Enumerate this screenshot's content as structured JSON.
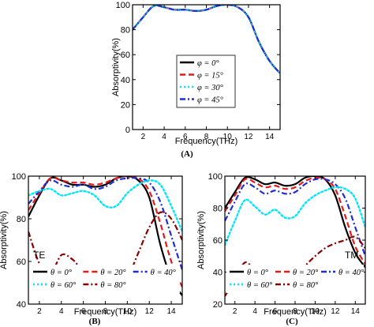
{
  "figure": {
    "panel_labels": [
      "(A)",
      "(B)",
      "(C)"
    ]
  },
  "chart_data": [
    {
      "type": "line",
      "panel": "(A)",
      "inset_label": "",
      "xlabel": "Frequency(THz)",
      "ylabel": "Absorptivity(%)",
      "xlim": [
        1,
        15
      ],
      "ylim": [
        0,
        100
      ],
      "xticks": [
        2,
        4,
        6,
        8,
        10,
        12,
        14
      ],
      "yticks": [
        0,
        20,
        40,
        60,
        80,
        100
      ],
      "legend_placement": "bottom-right",
      "legend_columns": 1,
      "series": [
        {
          "name": "φ = 0°",
          "color": "#000000",
          "dash": "solid",
          "x": [
            1,
            2,
            3,
            4,
            5,
            6,
            7,
            8,
            9,
            10,
            11,
            12,
            13,
            14,
            15
          ],
          "y": [
            80,
            90,
            99,
            98,
            96,
            96,
            95,
            96,
            99,
            100,
            98,
            90,
            70,
            55,
            45
          ]
        },
        {
          "name": "φ = 15°",
          "color": "#e41a1c",
          "dash": "dash",
          "x": [
            1,
            2,
            3,
            4,
            5,
            6,
            7,
            8,
            9,
            10,
            11,
            12,
            13,
            14,
            15
          ],
          "y": [
            80,
            90,
            99,
            98,
            96,
            96,
            95,
            96,
            99,
            100,
            98,
            90,
            70,
            55,
            45
          ]
        },
        {
          "name": "φ = 30°",
          "color": "#00e5ff",
          "dash": "dot",
          "x": [
            1,
            2,
            3,
            4,
            5,
            6,
            7,
            8,
            9,
            10,
            11,
            12,
            13,
            14,
            15
          ],
          "y": [
            80,
            90,
            99,
            98,
            96,
            96,
            95,
            96,
            99,
            100,
            98,
            90,
            70,
            55,
            45
          ]
        },
        {
          "name": "φ = 45°",
          "color": "#1f2fd6",
          "dash": "dashdot",
          "x": [
            1,
            2,
            3,
            4,
            5,
            6,
            7,
            8,
            9,
            10,
            11,
            12,
            13,
            14,
            15
          ],
          "y": [
            80,
            90,
            99,
            98,
            96,
            96,
            95,
            96,
            99,
            100,
            98,
            90,
            70,
            55,
            45
          ]
        }
      ]
    },
    {
      "type": "line",
      "panel": "(B)",
      "inset_label": "TE",
      "xlabel": "Frequency(THz)",
      "ylabel": "Absorptivity(%)",
      "xlim": [
        1,
        15
      ],
      "ylim": [
        40,
        100
      ],
      "xticks": [
        2,
        4,
        6,
        8,
        10,
        12,
        14
      ],
      "yticks": [
        40,
        60,
        80,
        100
      ],
      "legend_placement": "bottom",
      "legend_columns": 3,
      "series": [
        {
          "name": "θ = 0°",
          "color": "#000000",
          "dash": "solid",
          "x": [
            1,
            2,
            3,
            4,
            5,
            6,
            7,
            8,
            9,
            10,
            11,
            12,
            13,
            14,
            15
          ],
          "y": [
            81,
            91,
            99,
            98,
            96,
            96,
            95,
            96,
            99,
            100,
            98,
            90,
            68,
            52,
            44
          ]
        },
        {
          "name": "θ = 20°",
          "color": "#e41a1c",
          "dash": "dash",
          "x": [
            1,
            2,
            3,
            4,
            5,
            6,
            7,
            8,
            9,
            10,
            11,
            12,
            13,
            14,
            15
          ],
          "y": [
            84,
            92,
            99,
            98,
            97,
            97,
            96,
            97,
            99,
            100,
            99,
            93,
            78,
            60,
            48
          ]
        },
        {
          "name": "θ = 40°",
          "color": "#1f2fd6",
          "dash": "dashdot",
          "x": [
            1,
            2,
            3,
            4,
            5,
            6,
            7,
            8,
            9,
            10,
            11,
            12,
            13,
            14,
            15
          ],
          "y": [
            87,
            93,
            98,
            96,
            95,
            96,
            94,
            95,
            98,
            99,
            99,
            97,
            88,
            72,
            56
          ]
        },
        {
          "name": "θ = 60°",
          "color": "#00e5ff",
          "dash": "dot",
          "x": [
            1,
            2,
            3,
            4,
            5,
            6,
            7,
            8,
            9,
            10,
            11,
            12,
            13,
            14,
            15
          ],
          "y": [
            91,
            93,
            94,
            91,
            92,
            93,
            91,
            86,
            86,
            92,
            96,
            98,
            96,
            86,
            74
          ]
        },
        {
          "name": "θ = 80°",
          "color": "#8b0000",
          "dash": "dashdot",
          "x": [
            1,
            2,
            3,
            4,
            5,
            6,
            7,
            8,
            9,
            10,
            11,
            12,
            13,
            14,
            15
          ],
          "y": [
            74,
            59,
            54,
            63,
            61,
            56,
            58,
            50,
            46,
            52,
            64,
            76,
            83,
            80,
            70
          ]
        }
      ]
    },
    {
      "type": "line",
      "panel": "(C)",
      "inset_label": "TM",
      "xlabel": "Frequency(THz)",
      "ylabel": "Absorptivity(%)",
      "xlim": [
        1,
        15
      ],
      "ylim": [
        20,
        100
      ],
      "xticks": [
        2,
        4,
        6,
        8,
        10,
        12,
        14
      ],
      "yticks": [
        20,
        40,
        60,
        80,
        100
      ],
      "legend_placement": "bottom",
      "legend_columns": 3,
      "series": [
        {
          "name": "θ = 0°",
          "color": "#000000",
          "dash": "solid",
          "x": [
            1,
            2,
            3,
            4,
            5,
            6,
            7,
            8,
            9,
            10,
            11,
            12,
            13,
            14,
            15
          ],
          "y": [
            80,
            90,
            99,
            98,
            95,
            96,
            94,
            95,
            99,
            100,
            98,
            88,
            68,
            52,
            43
          ]
        },
        {
          "name": "θ = 20°",
          "color": "#e41a1c",
          "dash": "dash",
          "x": [
            1,
            2,
            3,
            4,
            5,
            6,
            7,
            8,
            9,
            10,
            11,
            12,
            13,
            14,
            15
          ],
          "y": [
            78,
            88,
            98,
            96,
            93,
            94,
            92,
            93,
            97,
            99,
            98,
            92,
            75,
            56,
            45
          ]
        },
        {
          "name": "θ = 40°",
          "color": "#1f2fd6",
          "dash": "dashdot",
          "x": [
            1,
            2,
            3,
            4,
            5,
            6,
            7,
            8,
            9,
            10,
            11,
            12,
            13,
            14,
            15
          ],
          "y": [
            72,
            84,
            95,
            93,
            89,
            91,
            89,
            90,
            95,
            98,
            98,
            95,
            86,
            68,
            50
          ]
        },
        {
          "name": "θ = 60°",
          "color": "#00e5ff",
          "dash": "dot",
          "x": [
            1,
            2,
            3,
            4,
            5,
            6,
            7,
            8,
            9,
            10,
            11,
            12,
            13,
            14,
            15
          ],
          "y": [
            57,
            72,
            85,
            81,
            76,
            79,
            74,
            75,
            83,
            88,
            91,
            93,
            92,
            86,
            68
          ]
        },
        {
          "name": "θ = 80°",
          "color": "#8b0000",
          "dash": "dashdot",
          "x": [
            1,
            2,
            3,
            4,
            5,
            6,
            7,
            8,
            9,
            10,
            11,
            12,
            13,
            14,
            15
          ],
          "y": [
            25,
            35,
            46,
            41,
            37,
            40,
            36,
            38,
            44,
            50,
            55,
            58,
            60,
            62,
            55
          ]
        }
      ]
    }
  ]
}
